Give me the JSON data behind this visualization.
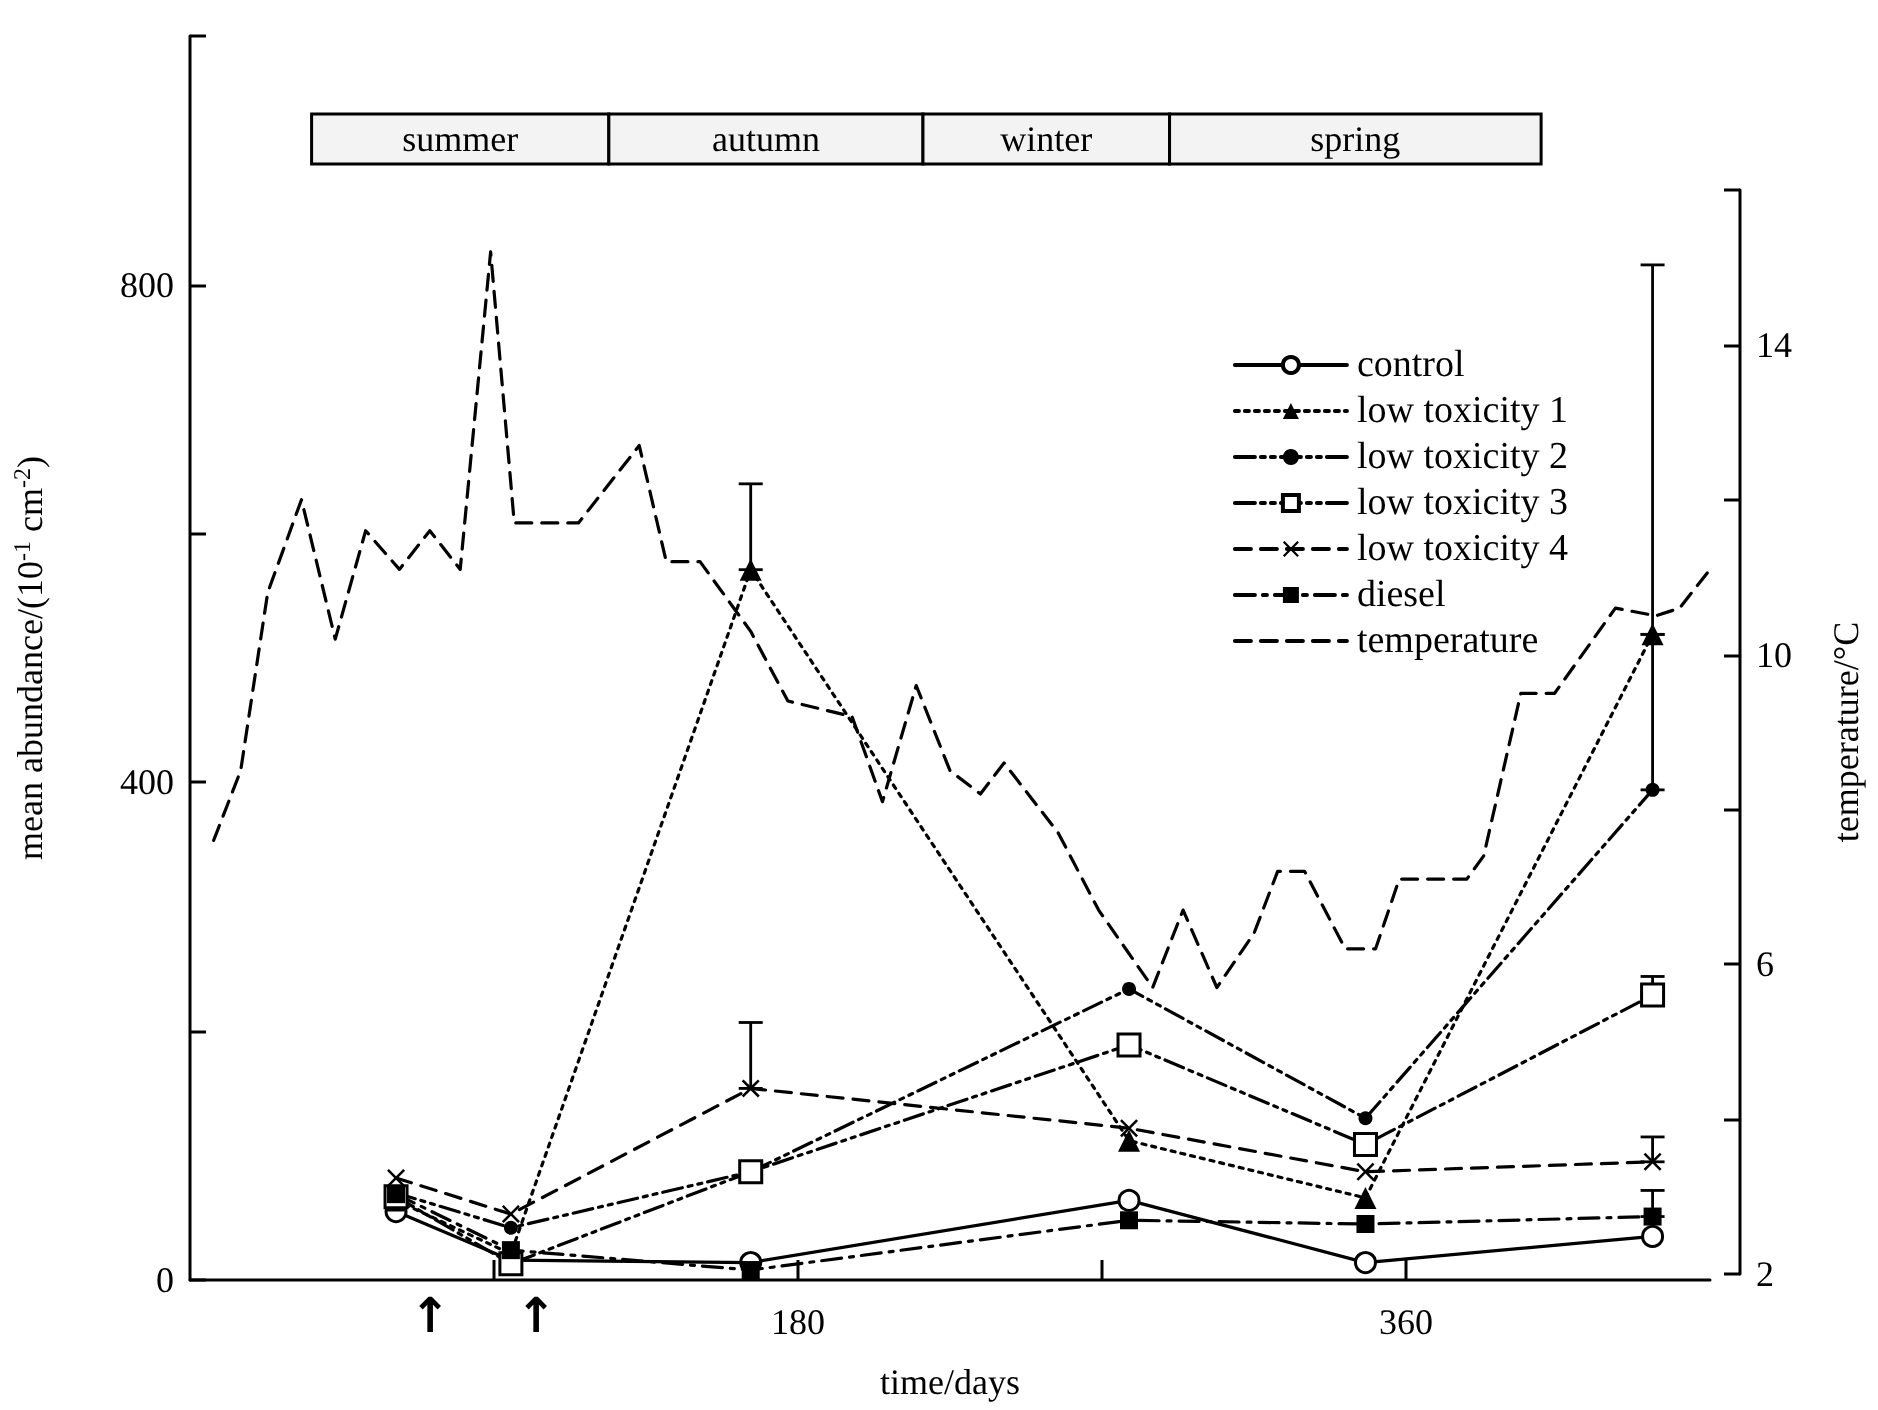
{
  "chart_data": {
    "type": "line",
    "xlabel": "time/days",
    "ylabel": "mean abundance/(10$^{-1}$ cm$^{-2}$)",
    "y2label": "temperature/°C",
    "xlim": [
      0,
      450
    ],
    "xticks": [
      {
        "value": 90,
        "label": null
      },
      180,
      {
        "value": 270,
        "label": null
      },
      360
    ],
    "ylim": [
      0,
      1000
    ],
    "yticks": [
      0,
      {
        "value": 200,
        "label": null
      },
      400,
      {
        "value": 600,
        "label": null
      },
      800,
      {
        "value": 1000,
        "label": null
      }
    ],
    "y2lim": [
      2,
      16
    ],
    "y2ticks": [
      2,
      {
        "value": 4,
        "label": null
      },
      6,
      {
        "value": 8,
        "label": null
      },
      10,
      {
        "value": 12,
        "label": null
      },
      14,
      {
        "value": 16,
        "label": null
      }
    ],
    "legend": "top right",
    "grid": false,
    "bands": [
      {
        "axis": "x",
        "from": 36,
        "to": 124,
        "label": "summer"
      },
      {
        "axis": "x",
        "from": 124,
        "to": 217,
        "label": "autumn"
      },
      {
        "axis": "x",
        "from": 217,
        "to": 290,
        "label": "winter"
      },
      {
        "axis": "x",
        "from": 290,
        "to": 400,
        "label": "spring"
      }
    ],
    "annotations": [
      "↑",
      "↑"
    ],
    "series": [
      {
        "name": "control",
        "color": "#000000",
        "marker": "circle-open",
        "line_style": "solid",
        "x": [
          61,
          95,
          166,
          278,
          348,
          433
        ],
        "values": [
          55,
          16,
          14,
          64,
          14,
          35
        ]
      },
      {
        "name": "low toxicity 1",
        "color": "#000000",
        "marker": "triangle",
        "line_style": "dotted",
        "x": [
          61,
          95,
          166,
          278,
          348,
          433
        ],
        "values": [
          64,
          21,
          571,
          112,
          66,
          519
        ],
        "errors": [
          null,
          null,
          [
            571,
            640
          ],
          null,
          null,
          [
            519,
            816
          ]
        ]
      },
      {
        "name": "low toxicity 2",
        "color": "#000000",
        "marker": "circle",
        "line_style": "dashdotdot",
        "x": [
          61,
          95,
          166,
          278,
          348,
          433
        ],
        "values": [
          70,
          42,
          87,
          234,
          130,
          394
        ],
        "errors": [
          null,
          null,
          null,
          null,
          null,
          [
            394,
            519
          ]
        ]
      },
      {
        "name": "low toxicity 3",
        "color": "#000000",
        "marker": "square-open",
        "line_style": "dashdotdot",
        "x": [
          61,
          95,
          166,
          278,
          348,
          433
        ],
        "values": [
          67,
          13,
          87,
          189,
          109,
          229
        ],
        "errors": [
          null,
          null,
          null,
          null,
          null,
          [
            229,
            244
          ]
        ]
      },
      {
        "name": "low toxicity 4",
        "color": "#000000",
        "marker": "cross",
        "line_style": "dashed",
        "x": [
          61,
          95,
          166,
          278,
          348,
          433
        ],
        "values": [
          82,
          53,
          154,
          122,
          87,
          95
        ],
        "errors": [
          null,
          null,
          [
            154,
            207
          ],
          null,
          null,
          [
            95,
            115
          ]
        ]
      },
      {
        "name": "diesel",
        "color": "#000000",
        "marker": "square",
        "line_style": "dashdot",
        "x": [
          61,
          95,
          166,
          278,
          348,
          433
        ],
        "values": [
          69,
          24,
          8,
          48,
          45,
          51
        ],
        "errors": [
          null,
          null,
          null,
          null,
          null,
          [
            51,
            72
          ]
        ]
      },
      {
        "name": "temperature",
        "color": "#000000",
        "marker": "none",
        "line_style": "dashed",
        "axis": "y2",
        "x": [
          7,
          15,
          23,
          33,
          43,
          52,
          62,
          71,
          80,
          89,
          96,
          115,
          133,
          141,
          151,
          166,
          177,
          196,
          205,
          215,
          225,
          234,
          241,
          257,
          269,
          285,
          294,
          304,
          315,
          322,
          330,
          342,
          351,
          358,
          378,
          383,
          394,
          404,
          422,
          434,
          441,
          450
        ],
        "values": [
          7.6,
          8.5,
          10.8,
          12.0,
          10.2,
          11.6,
          11.1,
          11.6,
          11.1,
          15.2,
          11.7,
          11.7,
          12.7,
          11.2,
          11.2,
          10.3,
          9.4,
          9.2,
          8.1,
          9.6,
          8.5,
          8.2,
          8.6,
          7.7,
          6.7,
          5.7,
          6.7,
          5.7,
          6.4,
          7.2,
          7.2,
          6.2,
          6.2,
          7.1,
          7.1,
          7.4,
          9.5,
          9.5,
          10.6,
          10.5,
          10.6,
          11.1
        ]
      }
    ]
  }
}
